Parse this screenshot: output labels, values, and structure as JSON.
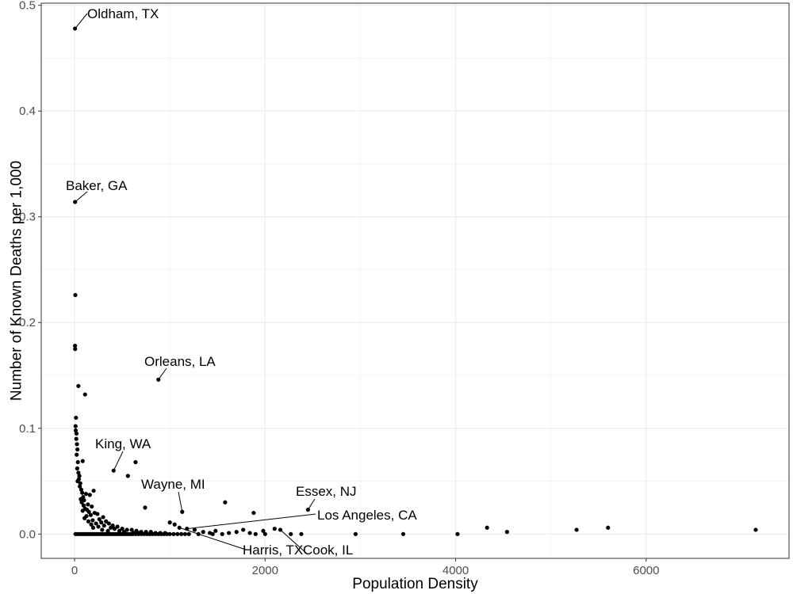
{
  "chart_data": {
    "type": "scatter",
    "title": "",
    "xlabel": "Population Density",
    "ylabel": "Number of Known Deaths per 1,000",
    "xlim": [
      -350,
      7500
    ],
    "ylim": [
      -0.023,
      0.502
    ],
    "x_ticks": [
      0,
      2000,
      4000,
      6000
    ],
    "x_tick_labels": [
      "0",
      "2000",
      "4000",
      "6000"
    ],
    "y_ticks": [
      0.0,
      0.1,
      0.2,
      0.3,
      0.4,
      0.5
    ],
    "y_tick_labels": [
      "0.0",
      "0.1",
      "0.2",
      "0.3",
      "0.4",
      "0.5"
    ],
    "grid": true,
    "point_color": "#000000",
    "points": [
      [
        5,
        0.478
      ],
      [
        5,
        0.314
      ],
      [
        8,
        0.226
      ],
      [
        5,
        0.178
      ],
      [
        6,
        0.175
      ],
      [
        40,
        0.14
      ],
      [
        110,
        0.132
      ],
      [
        15,
        0.11
      ],
      [
        10,
        0.102
      ],
      [
        12,
        0.098
      ],
      [
        20,
        0.095
      ],
      [
        18,
        0.09
      ],
      [
        25,
        0.085
      ],
      [
        30,
        0.08
      ],
      [
        22,
        0.075
      ],
      [
        85,
        0.069
      ],
      [
        35,
        0.068
      ],
      [
        28,
        0.062
      ],
      [
        40,
        0.058
      ],
      [
        50,
        0.055
      ],
      [
        45,
        0.052
      ],
      [
        32,
        0.05
      ],
      [
        60,
        0.048
      ],
      [
        55,
        0.045
      ],
      [
        70,
        0.042
      ],
      [
        200,
        0.041
      ],
      [
        80,
        0.039
      ],
      [
        120,
        0.038
      ],
      [
        90,
        0.035
      ],
      [
        160,
        0.037
      ],
      [
        65,
        0.033
      ],
      [
        100,
        0.032
      ],
      [
        75,
        0.03
      ],
      [
        140,
        0.028
      ],
      [
        95,
        0.027
      ],
      [
        180,
        0.026
      ],
      [
        110,
        0.024
      ],
      [
        130,
        0.023
      ],
      [
        85,
        0.022
      ],
      [
        150,
        0.021
      ],
      [
        210,
        0.02
      ],
      [
        240,
        0.019
      ],
      [
        170,
        0.018
      ],
      [
        125,
        0.017
      ],
      [
        300,
        0.016
      ],
      [
        105,
        0.015
      ],
      [
        260,
        0.014
      ],
      [
        190,
        0.013
      ],
      [
        145,
        0.012
      ],
      [
        330,
        0.012
      ],
      [
        280,
        0.011
      ],
      [
        225,
        0.01
      ],
      [
        360,
        0.01
      ],
      [
        175,
        0.009
      ],
      [
        310,
        0.008
      ],
      [
        400,
        0.008
      ],
      [
        250,
        0.007
      ],
      [
        450,
        0.007
      ],
      [
        195,
        0.006
      ],
      [
        380,
        0.006
      ],
      [
        500,
        0.005
      ],
      [
        420,
        0.005
      ],
      [
        290,
        0.004
      ],
      [
        550,
        0.004
      ],
      [
        600,
        0.004
      ],
      [
        350,
        0.003
      ],
      [
        470,
        0.003
      ],
      [
        650,
        0.003
      ],
      [
        700,
        0.002
      ],
      [
        520,
        0.002
      ],
      [
        750,
        0.002
      ],
      [
        800,
        0.002
      ],
      [
        620,
        0.001
      ],
      [
        850,
        0.001
      ],
      [
        900,
        0.001
      ],
      [
        950,
        0.001
      ],
      [
        680,
        0.001
      ],
      [
        10,
        0.0
      ],
      [
        30,
        0.0
      ],
      [
        50,
        0.0
      ],
      [
        70,
        0.0
      ],
      [
        90,
        0.0
      ],
      [
        110,
        0.0
      ],
      [
        130,
        0.0
      ],
      [
        150,
        0.0
      ],
      [
        170,
        0.0
      ],
      [
        190,
        0.0
      ],
      [
        210,
        0.0
      ],
      [
        230,
        0.0
      ],
      [
        250,
        0.0
      ],
      [
        270,
        0.0
      ],
      [
        290,
        0.0
      ],
      [
        310,
        0.0
      ],
      [
        330,
        0.0
      ],
      [
        350,
        0.0
      ],
      [
        370,
        0.0
      ],
      [
        390,
        0.0
      ],
      [
        410,
        0.0
      ],
      [
        430,
        0.0
      ],
      [
        450,
        0.0
      ],
      [
        470,
        0.0
      ],
      [
        490,
        0.0
      ],
      [
        510,
        0.0
      ],
      [
        530,
        0.0
      ],
      [
        550,
        0.0
      ],
      [
        570,
        0.0
      ],
      [
        590,
        0.0
      ],
      [
        610,
        0.0
      ],
      [
        640,
        0.0
      ],
      [
        670,
        0.0
      ],
      [
        700,
        0.0
      ],
      [
        730,
        0.0
      ],
      [
        760,
        0.0
      ],
      [
        790,
        0.0
      ],
      [
        820,
        0.0
      ],
      [
        850,
        0.0
      ],
      [
        880,
        0.0
      ],
      [
        910,
        0.0
      ],
      [
        940,
        0.0
      ],
      [
        970,
        0.0
      ],
      [
        1000,
        0.0
      ],
      [
        1040,
        0.0
      ],
      [
        1080,
        0.0
      ],
      [
        1120,
        0.0
      ],
      [
        1160,
        0.0
      ],
      [
        1200,
        0.0
      ],
      [
        560,
        0.055
      ],
      [
        640,
        0.068
      ],
      [
        410,
        0.06
      ],
      [
        740,
        0.025
      ],
      [
        880,
        0.146
      ],
      [
        1130,
        0.021
      ],
      [
        2450,
        0.023
      ],
      [
        1580,
        0.03
      ],
      [
        1880,
        0.02
      ],
      [
        1000,
        0.011
      ],
      [
        1050,
        0.009
      ],
      [
        1100,
        0.006
      ],
      [
        1180,
        0.005
      ],
      [
        1260,
        0.004
      ],
      [
        1350,
        0.002
      ],
      [
        1420,
        0.001
      ],
      [
        1480,
        0.003
      ],
      [
        1550,
        0.0
      ],
      [
        1620,
        0.001
      ],
      [
        1700,
        0.002
      ],
      [
        1770,
        0.004
      ],
      [
        1840,
        0.001
      ],
      [
        1980,
        0.003
      ],
      [
        2100,
        0.005
      ],
      [
        2160,
        0.004
      ],
      [
        2380,
        0.0
      ],
      [
        2950,
        0.0
      ],
      [
        3450,
        0.0
      ],
      [
        4020,
        0.0
      ],
      [
        4330,
        0.006
      ],
      [
        4540,
        0.002
      ],
      [
        5270,
        0.004
      ],
      [
        5600,
        0.006
      ],
      [
        7150,
        0.004
      ],
      [
        2270,
        0.0
      ],
      [
        2000,
        0.0
      ],
      [
        1900,
        0.0
      ],
      [
        1450,
        0.0
      ],
      [
        1300,
        0.0
      ]
    ],
    "annotations": [
      {
        "label": "Oldham, TX",
        "x": 5,
        "y": 0.478
      },
      {
        "label": "Baker, GA",
        "x": 5,
        "y": 0.314
      },
      {
        "label": "Orleans, LA",
        "x": 880,
        "y": 0.146
      },
      {
        "label": "King, WA",
        "x": 410,
        "y": 0.06
      },
      {
        "label": "Wayne, MI",
        "x": 1130,
        "y": 0.021
      },
      {
        "label": "Essex, NJ",
        "x": 2450,
        "y": 0.023
      },
      {
        "label": "Los Angeles, CA",
        "x": 1180,
        "y": 0.005
      },
      {
        "label": "Harris, TX",
        "x": 1100,
        "y": 0.006
      },
      {
        "label": "Cook, IL",
        "x": 2160,
        "y": 0.004
      }
    ]
  }
}
